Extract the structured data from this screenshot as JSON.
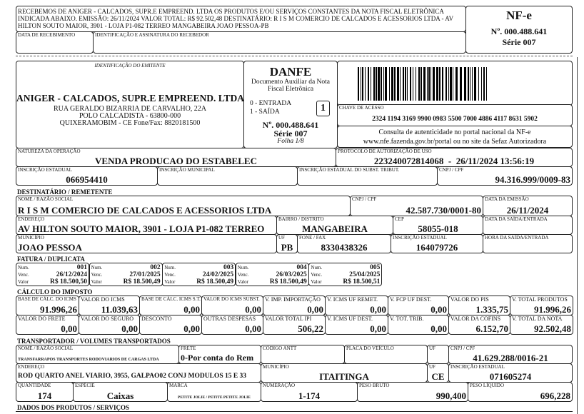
{
  "receipt": {
    "text": "RECEBEMOS DE ANIGER - CALCADOS, SUPR.E EMPREEND. LTDA OS PRODUTOS E/OU SERVIÇOS CONSTANTES DA NOTA FISCAL ELETRÔNICA INDICADA ABAIXO. EMISSÃO: 26/11/2024 VALOR TOTAL: R$ 92.502,48 DESTINATÁRIO: R I S M COMERCIO DE CALCADOS E ACESSORIOS LTDA - AV HILTON SOUTO MAIOR, 3901 - LOJA P1-082 TERREO MANGABEIRA JOAO PESSOA-PB",
    "date_label": "DATA DE RECEBIMENTO",
    "signature_label": "IDENTIFICAÇÃO E ASSINATURA DO RECEBEDOR",
    "nfe_title": "NF-e",
    "nfe_number": "Nº. 000.488.641",
    "nfe_series": "Série 007"
  },
  "emitter": {
    "section_label": "IDENTIFICAÇÃO DO EMITENTE",
    "name": "ANIGER - CALCADOS, SUPR.E EMPREEND. LTDA",
    "address1": "RUA GERALDO BIZARRIA DE CARVALHO, 22A",
    "address2": "POLO CALCADISTA - 63800-000",
    "address3": "QUIXERAMOBIM - CE Fone/Fax: 8820181500"
  },
  "danfe": {
    "title": "DANFE",
    "subtitle1": "Documento Auxiliar da Nota",
    "subtitle2": "Fiscal Eletrônica",
    "entrada": "0 - ENTRADA",
    "saida": "1 - SAÍDA",
    "type_value": "1",
    "number": "Nº. 000.488.641",
    "series": "Série 007",
    "sheet": "Folha 1/8"
  },
  "access": {
    "key_label": "CHAVE DE ACESSO",
    "key": "2324 1194 3169 9900 0983 5500 7000 4886 4117 8631 5902",
    "consult1": "Consulta de autenticidade no portal nacional da NF-e",
    "consult2": "www.nfe.fazenda.gov.br/portal ou no site da Sefaz Autorizadora"
  },
  "operation": {
    "nature_label": "NATUREZA DA OPERAÇÃO",
    "nature": "VENDA PRODUCAO DO ESTABELEC",
    "protocol_label": "PROTOCOLO DE AUTORIZAÇÃO DE USO",
    "protocol": "223240072814068  -  26/11/2024 13:56:19",
    "ie_label": "INSCRIÇÃO ESTADUAL",
    "ie": "066954410",
    "im_label": "INSCRIÇÃO MUNICIPAL",
    "im": "",
    "iest_label": "INSCRIÇÃO ESTADUAL DO SUBST. TRIBUT.",
    "iest": "",
    "cnpj_label": "CNPJ / CPF",
    "cnpj": "94.316.999/0009-83"
  },
  "recipient": {
    "section_title": "DESTINATÁRIO / REMETENTE",
    "name_label": "NOME / RAZÃO SOCIAL",
    "name": "R I S M COMERCIO DE CALCADOS E ACESSORIOS LTDA",
    "cnpj_label": "CNPJ / CPF",
    "cnpj": "42.587.730/0001-80",
    "emission_label": "DATA DA EMISSÃO",
    "emission": "26/11/2024",
    "address_label": "ENDEREÇO",
    "address": "AV HILTON SOUTO MAIOR, 3901 - LOJA P1-082 TERREO",
    "district_label": "BAIRRO / DISTRITO",
    "district": "MANGABEIRA",
    "cep_label": "CEP",
    "cep": "58055-018",
    "exit_date_label": "DATA DA SAÍDA/ENTRADA",
    "exit_date": "",
    "city_label": "MUNICÍPIO",
    "city": "JOAO PESSOA",
    "uf_label": "UF",
    "uf": "PB",
    "phone_label": "FONE / FAX",
    "phone": "8330438326",
    "ie_label": "INSCRIÇÃO ESTADUAL",
    "ie": "164079726",
    "exit_time_label": "HORA DA SAÍDA/ENTRADA",
    "exit_time": ""
  },
  "invoice": {
    "section_title": "FATURA / DUPLICATA",
    "num_label": "Num.",
    "due_label": "Venc.",
    "value_label": "Valor",
    "items": [
      {
        "num": "001",
        "due": "26/12/2024",
        "value": "R$ 18.500,50"
      },
      {
        "num": "002",
        "due": "27/01/2025",
        "value": "R$ 18.500,49"
      },
      {
        "num": "003",
        "due": "24/02/2025",
        "value": "R$ 18.500,49"
      },
      {
        "num": "004",
        "due": "26/03/2025",
        "value": "R$ 18.500,49"
      },
      {
        "num": "005",
        "due": "25/04/2025",
        "value": "R$ 18.500,51"
      }
    ]
  },
  "tax": {
    "section_title": "CÁLCULO DO IMPOSTO",
    "row1": [
      {
        "label": "BASE DE CÁLC. DO ICMS",
        "value": "91.996,26"
      },
      {
        "label": "VALOR DO ICMS",
        "value": "11.039,63"
      },
      {
        "label": "BASE DE CÁLC. ICMS S.T.",
        "value": "0,00"
      },
      {
        "label": "VALOR DO ICMS SUBST.",
        "value": "0,00"
      },
      {
        "label": "V. IMP. IMPORTAÇÃO",
        "value": "0,00"
      },
      {
        "label": "V. ICMS UF REMET.",
        "value": "0,00"
      },
      {
        "label": "V. FCP UF DEST.",
        "value": "0,00"
      },
      {
        "label": "VALOR DO PIS",
        "value": "1.335,75"
      },
      {
        "label": "V. TOTAL PRODUTOS",
        "value": "91.996,26"
      }
    ],
    "row2": [
      {
        "label": "VALOR DO FRETE",
        "value": "0,00"
      },
      {
        "label": "VALOR DO SEGURO",
        "value": "0,00"
      },
      {
        "label": "DESCONTO",
        "value": "0,00"
      },
      {
        "label": "OUTRAS DESPESAS",
        "value": "0,00"
      },
      {
        "label": "VALOR TOTAL IPI",
        "value": "506,22"
      },
      {
        "label": "V. ICMS UF DEST.",
        "value": "0,00"
      },
      {
        "label": "V. TOT. TRIB.",
        "value": "0,00"
      },
      {
        "label": "VALOR DA COFINS",
        "value": "6.152,70"
      },
      {
        "label": "V. TOTAL DA NOTA",
        "value": "92.502,48"
      }
    ]
  },
  "transport": {
    "section_title": "TRANSPORTADOR / VOLUMES TRANSPORTADOS",
    "name_label": "NOME / RAZÃO SOCIAL",
    "name": "TRANSFARRAPOS TRANSPORTES RODOVIARIOS DE CARGAS LTDA",
    "freight_label": "FRETE",
    "freight": "0-Por conta do Rem",
    "antt_label": "CÓDIGO ANTT",
    "antt": "",
    "plate_label": "PLACA DO VEÍCULO",
    "plate": "",
    "uf_label": "UF",
    "uf1": "",
    "uf2": "CE",
    "cnpj_label": "CNPJ / CPF",
    "cnpj": "41.629.288/0016-21",
    "address_label": "ENDEREÇO",
    "address": "ROD QUARTO ANEL VIARIO, 3955, GALPAO02 CONJ MODULOS 15 E 33",
    "city_label": "MUNICÍPIO",
    "city": "ITAITINGA",
    "ie_label": "INSCRIÇÃO ESTADUAL",
    "ie": "071605274",
    "qty_label": "QUANTIDADE",
    "qty": "174",
    "species_label": "ESPÉCIE",
    "species": "Caixas",
    "brand_label": "MARCA",
    "brand": "PETITE JOLIE / PETITE PETITE JOLIE",
    "numbering_label": "NUMERAÇÃO",
    "numbering": "1-174",
    "gross_label": "PESO BRUTO",
    "gross": "990,400",
    "net_label": "PESO LÍQUIDO",
    "net": "696,228"
  },
  "products": {
    "section_title": "DADOS DOS PRODUTOS / SERVIÇOS"
  }
}
